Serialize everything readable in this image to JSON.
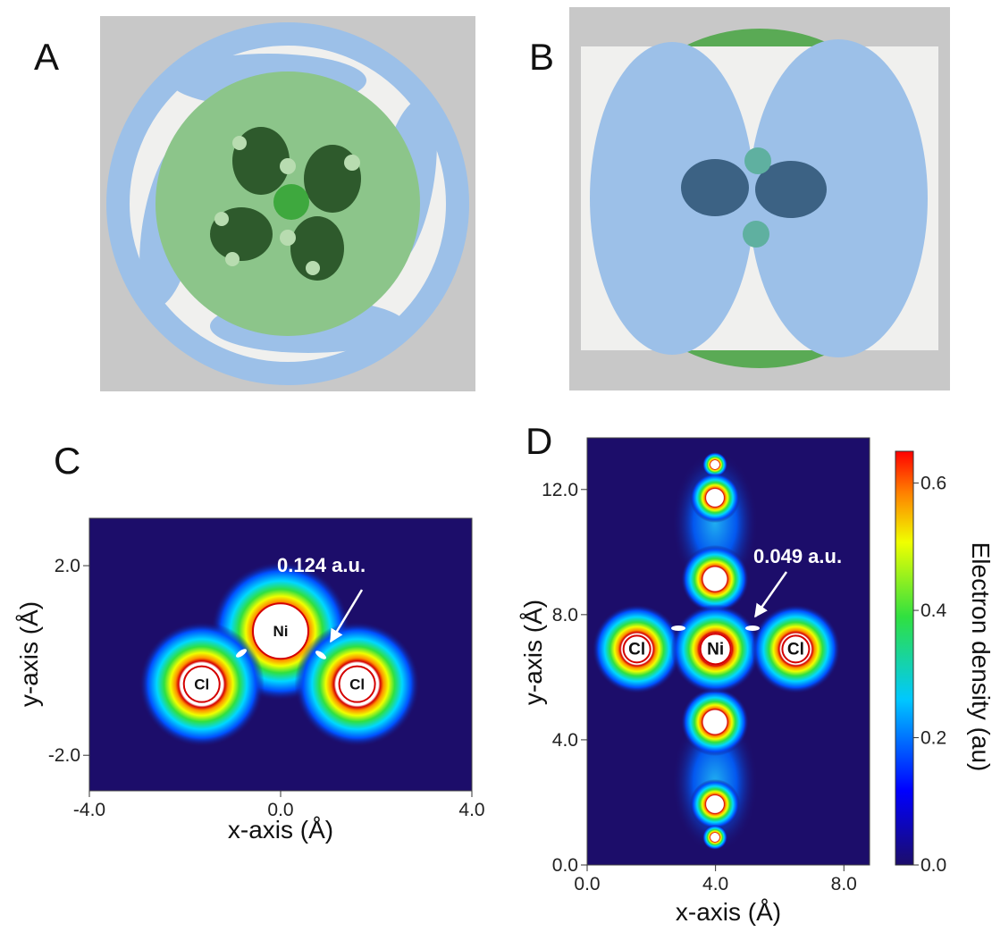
{
  "panels": [
    {
      "label": "A"
    },
    {
      "label": "B"
    },
    {
      "label": "C",
      "x_label": "x-axis (Å)",
      "y_label": "y-axis (Å)",
      "xlim": [
        -4,
        4
      ],
      "ylim": [
        -2.75,
        3.0
      ],
      "xticks": [
        {
          "value": -4,
          "label": "-4.0"
        },
        {
          "value": 0,
          "label": "0.0"
        },
        {
          "value": 4,
          "label": "4.0"
        }
      ],
      "yticks": [
        {
          "value": -2,
          "label": "-2.0"
        },
        {
          "value": 2,
          "label": "2.0"
        }
      ],
      "atoms": [
        {
          "name": "Ni",
          "x": 0,
          "y": 0.62
        },
        {
          "name": "Cl",
          "x": -1.65,
          "y": -0.5
        },
        {
          "name": "Cl",
          "x": 1.6,
          "y": -0.5
        }
      ],
      "annotation": "0.124 a.u."
    },
    {
      "label": "D",
      "x_label": "x-axis (Å)",
      "y_label": "y-axis (Å)",
      "xlim": [
        0,
        8.8
      ],
      "ylim": [
        0,
        13.65
      ],
      "xticks": [
        {
          "value": 0,
          "label": "0.0"
        },
        {
          "value": 4,
          "label": "4.0"
        },
        {
          "value": 8,
          "label": "8.0"
        }
      ],
      "yticks": [
        {
          "value": 0,
          "label": "0.0"
        },
        {
          "value": 4,
          "label": "4.0"
        },
        {
          "value": 8,
          "label": "8.0"
        },
        {
          "value": 12,
          "label": "12.0"
        }
      ],
      "atoms": [
        {
          "name": "Cl",
          "x": 1.55,
          "y": 6.9
        },
        {
          "name": "Ni",
          "x": 4.0,
          "y": 6.9
        },
        {
          "name": "Cl",
          "x": 6.5,
          "y": 6.9
        }
      ],
      "annotation": "0.049 a.u."
    }
  ],
  "colorbar": {
    "label": "Electron density (au)",
    "lim": [
      0,
      0.65
    ],
    "ticks": [
      {
        "value": 0,
        "label": "0.0"
      },
      {
        "value": 0.2,
        "label": "0.2"
      },
      {
        "value": 0.4,
        "label": "0.4"
      },
      {
        "value": 0.6,
        "label": "0.6"
      }
    ]
  }
}
